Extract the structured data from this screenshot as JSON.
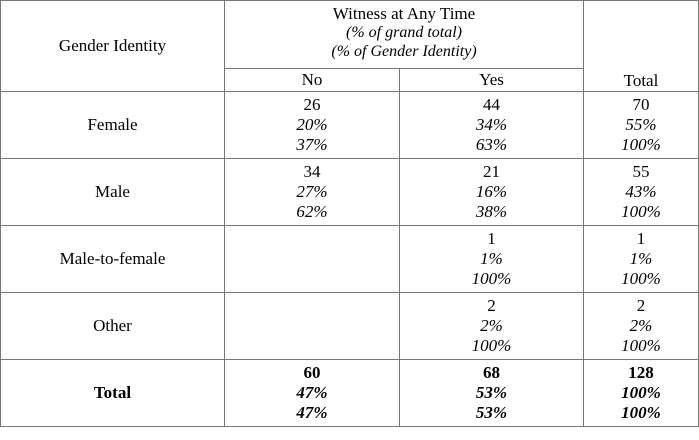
{
  "header": {
    "gender_identity": "Gender Identity",
    "witness_title": "Witness at Any Time",
    "sub_grand": "(% of grand total)",
    "sub_gender": "(% of Gender Identity)",
    "col_no": "No",
    "col_yes": "Yes",
    "col_total": "Total"
  },
  "rows": [
    {
      "label": "Female",
      "no": {
        "count": "26",
        "pct_grand": "20%",
        "pct_group": "37%"
      },
      "yes": {
        "count": "44",
        "pct_grand": "34%",
        "pct_group": "63%"
      },
      "total": {
        "count": "70",
        "pct_grand": "55%",
        "pct_group": "100%"
      }
    },
    {
      "label": "Male",
      "no": {
        "count": "34",
        "pct_grand": "27%",
        "pct_group": "62%"
      },
      "yes": {
        "count": "21",
        "pct_grand": "16%",
        "pct_group": "38%"
      },
      "total": {
        "count": "55",
        "pct_grand": "43%",
        "pct_group": "100%"
      }
    },
    {
      "label": "Male-to-female",
      "no": {
        "count": "",
        "pct_grand": "",
        "pct_group": ""
      },
      "yes": {
        "count": "1",
        "pct_grand": "1%",
        "pct_group": "100%"
      },
      "total": {
        "count": "1",
        "pct_grand": "1%",
        "pct_group": "100%"
      }
    },
    {
      "label": "Other",
      "no": {
        "count": "",
        "pct_grand": "",
        "pct_group": ""
      },
      "yes": {
        "count": "2",
        "pct_grand": "2%",
        "pct_group": "100%"
      },
      "total": {
        "count": "2",
        "pct_grand": "2%",
        "pct_group": "100%"
      }
    },
    {
      "label": "Total",
      "no": {
        "count": "60",
        "pct_grand": "47%",
        "pct_group": "47%"
      },
      "yes": {
        "count": "68",
        "pct_grand": "53%",
        "pct_group": "53%"
      },
      "total": {
        "count": "128",
        "pct_grand": "100%",
        "pct_group": "100%"
      }
    }
  ]
}
